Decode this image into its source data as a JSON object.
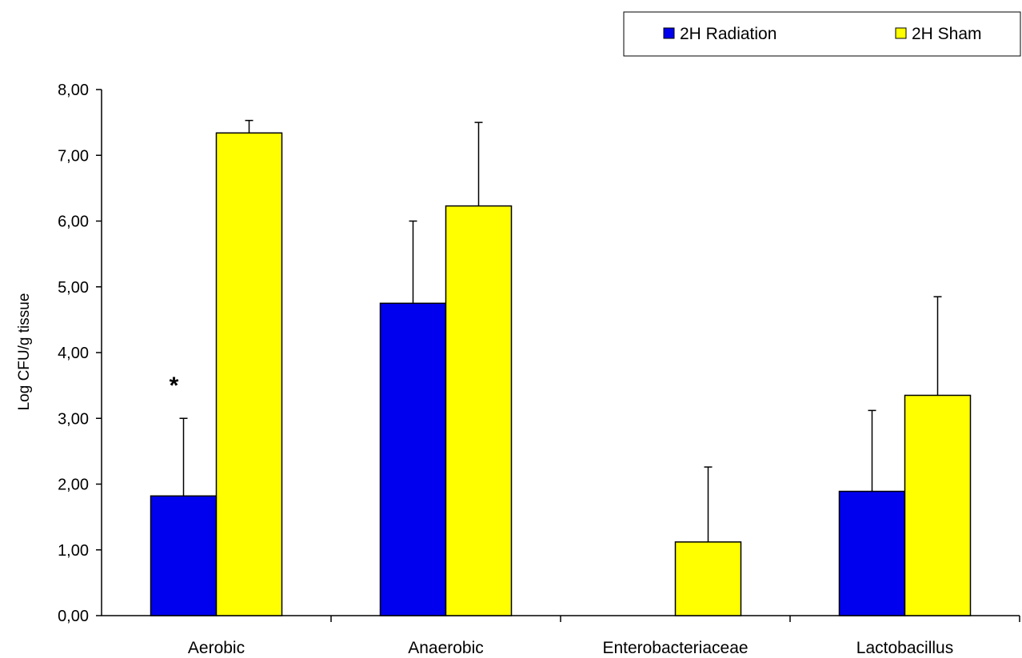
{
  "chart_data": {
    "type": "bar",
    "categories": [
      "Aerobic",
      "Anaerobic",
      "Enterobacteriaceae",
      "Lactobacillus"
    ],
    "series": [
      {
        "name": "2H Radiation",
        "color": "#0000EE",
        "values": [
          1.82,
          4.75,
          0,
          1.89
        ],
        "error": [
          1.18,
          1.25,
          0,
          1.23
        ]
      },
      {
        "name": "2H Sham",
        "color": "#FFFF00",
        "values": [
          7.34,
          6.23,
          1.12,
          3.35
        ],
        "error": [
          0.19,
          1.27,
          1.14,
          1.5
        ]
      }
    ],
    "ylabel": "Log CFU/g tissue",
    "ylim": [
      0,
      8
    ],
    "yticks": [
      "0,00",
      "1,00",
      "2,00",
      "3,00",
      "4,00",
      "5,00",
      "6,00",
      "7,00",
      "8,00"
    ],
    "grid": false,
    "legend_position": "top-right",
    "annotations": [
      {
        "text": "*",
        "category": "Aerobic",
        "series": "2H Radiation",
        "value": 3.6
      }
    ]
  }
}
